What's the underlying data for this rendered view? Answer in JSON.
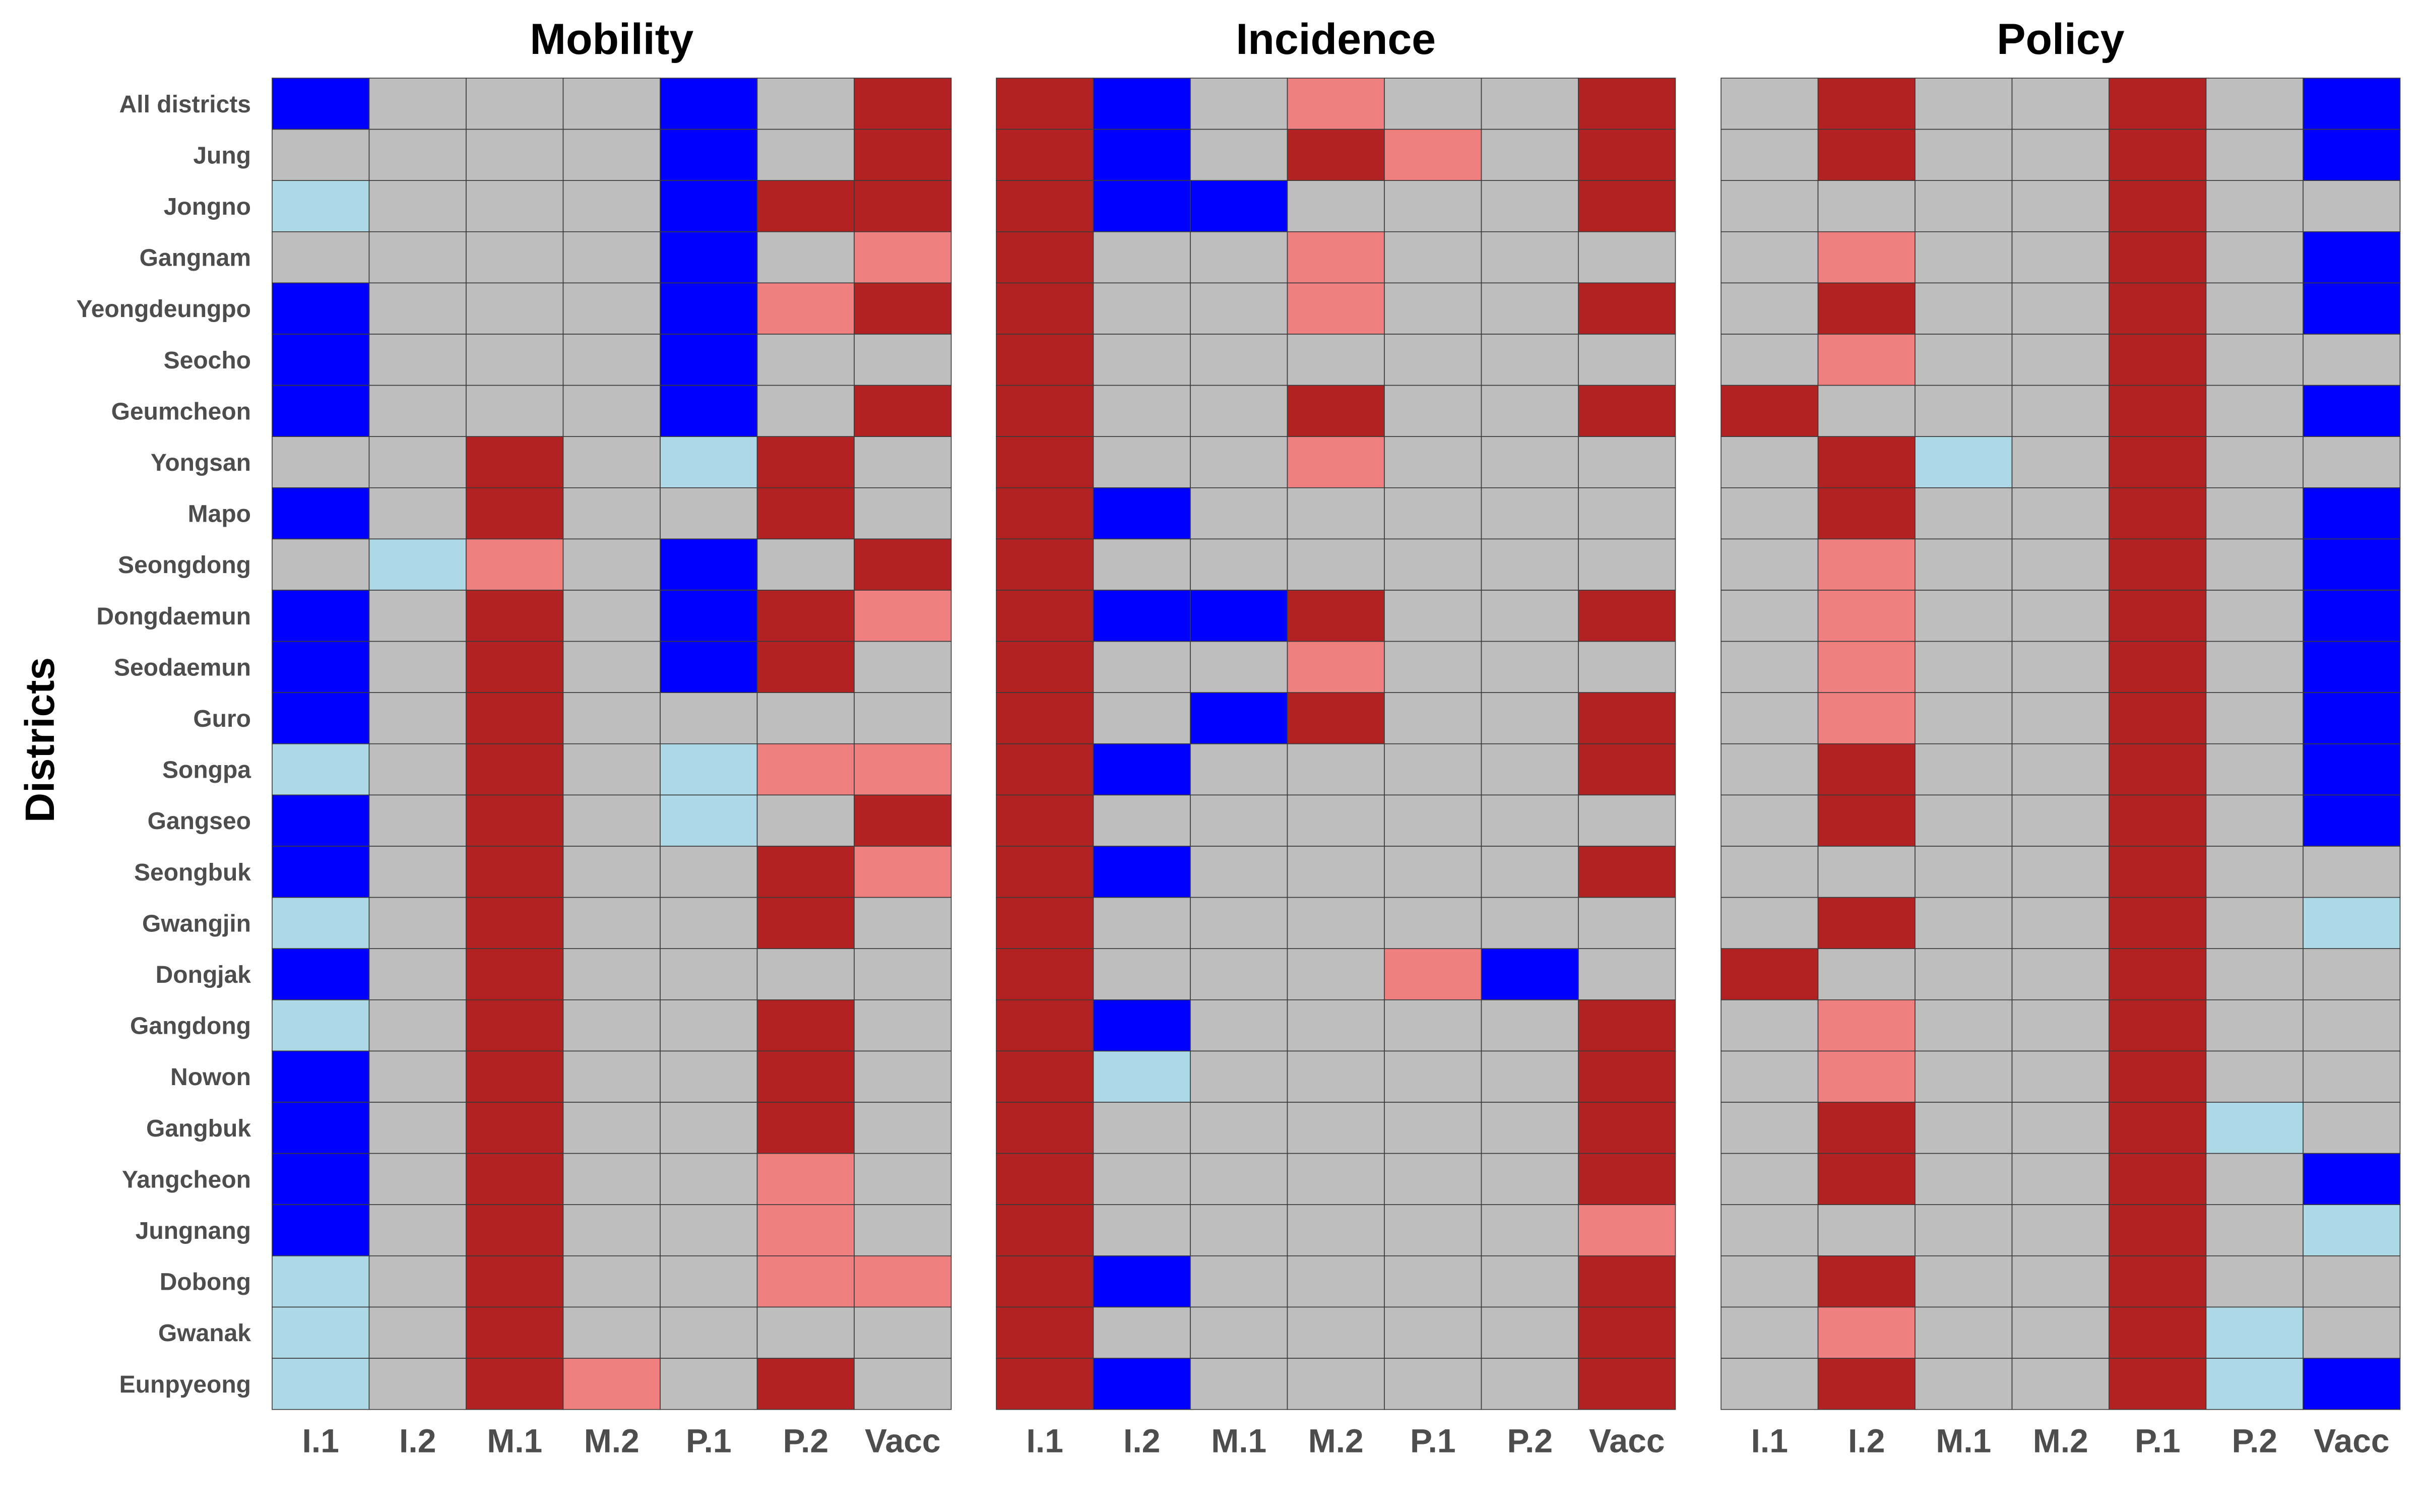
{
  "chart_data": {
    "type": "heatmap",
    "ylabel": "Districts",
    "columns": [
      "I.1",
      "I.2",
      "M.1",
      "M.2",
      "P.1",
      "P.2",
      "Vacc"
    ],
    "rows": [
      "All districts",
      "Jung",
      "Jongno",
      "Gangnam",
      "Yeongdeungpo",
      "Seocho",
      "Geumcheon",
      "Yongsan",
      "Mapo",
      "Seongdong",
      "Dongdaemun",
      "Seodaemun",
      "Guro",
      "Songpa",
      "Gangseo",
      "Seongbuk",
      "Gwangjin",
      "Dongjak",
      "Gangdong",
      "Nowon",
      "Gangbuk",
      "Yangcheon",
      "Jungnang",
      "Dobong",
      "Gwanak",
      "Eunpyeong"
    ],
    "category_colors": {
      "DR": "#b22222",
      "LR": "#f08080",
      "G": "#bebebe",
      "LB": "#add8e6",
      "B": "#0000ff"
    },
    "panels": [
      {
        "title": "Mobility",
        "cells": [
          [
            "B",
            "G",
            "G",
            "G",
            "B",
            "G",
            "DR"
          ],
          [
            "G",
            "G",
            "G",
            "G",
            "B",
            "G",
            "DR"
          ],
          [
            "LB",
            "G",
            "G",
            "G",
            "B",
            "DR",
            "DR"
          ],
          [
            "G",
            "G",
            "G",
            "G",
            "B",
            "G",
            "LR"
          ],
          [
            "B",
            "G",
            "G",
            "G",
            "B",
            "LR",
            "DR"
          ],
          [
            "B",
            "G",
            "G",
            "G",
            "B",
            "G",
            "G"
          ],
          [
            "B",
            "G",
            "G",
            "G",
            "B",
            "G",
            "DR"
          ],
          [
            "G",
            "G",
            "DR",
            "G",
            "LB",
            "DR",
            "G"
          ],
          [
            "B",
            "G",
            "DR",
            "G",
            "G",
            "DR",
            "G"
          ],
          [
            "G",
            "LB",
            "LR",
            "G",
            "B",
            "G",
            "DR"
          ],
          [
            "B",
            "G",
            "DR",
            "G",
            "B",
            "DR",
            "LR"
          ],
          [
            "B",
            "G",
            "DR",
            "G",
            "B",
            "DR",
            "G"
          ],
          [
            "B",
            "G",
            "DR",
            "G",
            "G",
            "G",
            "G"
          ],
          [
            "LB",
            "G",
            "DR",
            "G",
            "LB",
            "LR",
            "LR"
          ],
          [
            "B",
            "G",
            "DR",
            "G",
            "LB",
            "G",
            "DR"
          ],
          [
            "B",
            "G",
            "DR",
            "G",
            "G",
            "DR",
            "LR"
          ],
          [
            "LB",
            "G",
            "DR",
            "G",
            "G",
            "DR",
            "G"
          ],
          [
            "B",
            "G",
            "DR",
            "G",
            "G",
            "G",
            "G"
          ],
          [
            "LB",
            "G",
            "DR",
            "G",
            "G",
            "DR",
            "G"
          ],
          [
            "B",
            "G",
            "DR",
            "G",
            "G",
            "DR",
            "G"
          ],
          [
            "B",
            "G",
            "DR",
            "G",
            "G",
            "DR",
            "G"
          ],
          [
            "B",
            "G",
            "DR",
            "G",
            "G",
            "LR",
            "G"
          ],
          [
            "B",
            "G",
            "DR",
            "G",
            "G",
            "LR",
            "G"
          ],
          [
            "LB",
            "G",
            "DR",
            "G",
            "G",
            "LR",
            "LR"
          ],
          [
            "LB",
            "G",
            "DR",
            "G",
            "G",
            "G",
            "G"
          ],
          [
            "LB",
            "G",
            "DR",
            "LR",
            "G",
            "DR",
            "G"
          ]
        ]
      },
      {
        "title": "Incidence",
        "cells": [
          [
            "DR",
            "B",
            "G",
            "LR",
            "G",
            "G",
            "DR"
          ],
          [
            "DR",
            "B",
            "G",
            "DR",
            "LR",
            "G",
            "DR"
          ],
          [
            "DR",
            "B",
            "B",
            "G",
            "G",
            "G",
            "DR"
          ],
          [
            "DR",
            "G",
            "G",
            "LR",
            "G",
            "G",
            "G"
          ],
          [
            "DR",
            "G",
            "G",
            "LR",
            "G",
            "G",
            "DR"
          ],
          [
            "DR",
            "G",
            "G",
            "G",
            "G",
            "G",
            "G"
          ],
          [
            "DR",
            "G",
            "G",
            "DR",
            "G",
            "G",
            "DR"
          ],
          [
            "DR",
            "G",
            "G",
            "LR",
            "G",
            "G",
            "G"
          ],
          [
            "DR",
            "B",
            "G",
            "G",
            "G",
            "G",
            "G"
          ],
          [
            "DR",
            "G",
            "G",
            "G",
            "G",
            "G",
            "G"
          ],
          [
            "DR",
            "B",
            "B",
            "DR",
            "G",
            "G",
            "DR"
          ],
          [
            "DR",
            "G",
            "G",
            "LR",
            "G",
            "G",
            "G"
          ],
          [
            "DR",
            "G",
            "B",
            "DR",
            "G",
            "G",
            "DR"
          ],
          [
            "DR",
            "B",
            "G",
            "G",
            "G",
            "G",
            "DR"
          ],
          [
            "DR",
            "G",
            "G",
            "G",
            "G",
            "G",
            "G"
          ],
          [
            "DR",
            "B",
            "G",
            "G",
            "G",
            "G",
            "DR"
          ],
          [
            "DR",
            "G",
            "G",
            "G",
            "G",
            "G",
            "G"
          ],
          [
            "DR",
            "G",
            "G",
            "G",
            "LR",
            "B",
            "G"
          ],
          [
            "DR",
            "B",
            "G",
            "G",
            "G",
            "G",
            "DR"
          ],
          [
            "DR",
            "LB",
            "G",
            "G",
            "G",
            "G",
            "DR"
          ],
          [
            "DR",
            "G",
            "G",
            "G",
            "G",
            "G",
            "DR"
          ],
          [
            "DR",
            "G",
            "G",
            "G",
            "G",
            "G",
            "DR"
          ],
          [
            "DR",
            "G",
            "G",
            "G",
            "G",
            "G",
            "LR"
          ],
          [
            "DR",
            "B",
            "G",
            "G",
            "G",
            "G",
            "DR"
          ],
          [
            "DR",
            "G",
            "G",
            "G",
            "G",
            "G",
            "DR"
          ],
          [
            "DR",
            "B",
            "G",
            "G",
            "G",
            "G",
            "DR"
          ]
        ]
      },
      {
        "title": "Policy",
        "cells": [
          [
            "G",
            "DR",
            "G",
            "G",
            "DR",
            "G",
            "B"
          ],
          [
            "G",
            "DR",
            "G",
            "G",
            "DR",
            "G",
            "B"
          ],
          [
            "G",
            "G",
            "G",
            "G",
            "DR",
            "G",
            "G"
          ],
          [
            "G",
            "LR",
            "G",
            "G",
            "DR",
            "G",
            "B"
          ],
          [
            "G",
            "DR",
            "G",
            "G",
            "DR",
            "G",
            "B"
          ],
          [
            "G",
            "LR",
            "G",
            "G",
            "DR",
            "G",
            "G"
          ],
          [
            "DR",
            "G",
            "G",
            "G",
            "DR",
            "G",
            "B"
          ],
          [
            "G",
            "DR",
            "LB",
            "G",
            "DR",
            "G",
            "G"
          ],
          [
            "G",
            "DR",
            "G",
            "G",
            "DR",
            "G",
            "B"
          ],
          [
            "G",
            "LR",
            "G",
            "G",
            "DR",
            "G",
            "B"
          ],
          [
            "G",
            "LR",
            "G",
            "G",
            "DR",
            "G",
            "B"
          ],
          [
            "G",
            "LR",
            "G",
            "G",
            "DR",
            "G",
            "B"
          ],
          [
            "G",
            "LR",
            "G",
            "G",
            "DR",
            "G",
            "B"
          ],
          [
            "G",
            "DR",
            "G",
            "G",
            "DR",
            "G",
            "B"
          ],
          [
            "G",
            "DR",
            "G",
            "G",
            "DR",
            "G",
            "B"
          ],
          [
            "G",
            "G",
            "G",
            "G",
            "DR",
            "G",
            "G"
          ],
          [
            "G",
            "DR",
            "G",
            "G",
            "DR",
            "G",
            "LB"
          ],
          [
            "DR",
            "G",
            "G",
            "G",
            "DR",
            "G",
            "G"
          ],
          [
            "G",
            "LR",
            "G",
            "G",
            "DR",
            "G",
            "G"
          ],
          [
            "G",
            "LR",
            "G",
            "G",
            "DR",
            "G",
            "G"
          ],
          [
            "G",
            "DR",
            "G",
            "G",
            "DR",
            "LB",
            "G"
          ],
          [
            "G",
            "DR",
            "G",
            "G",
            "DR",
            "G",
            "B"
          ],
          [
            "G",
            "G",
            "G",
            "G",
            "DR",
            "G",
            "LB"
          ],
          [
            "G",
            "DR",
            "G",
            "G",
            "DR",
            "G",
            "G"
          ],
          [
            "G",
            "LR",
            "G",
            "G",
            "DR",
            "LB",
            "G"
          ],
          [
            "G",
            "DR",
            "G",
            "G",
            "DR",
            "LB",
            "B"
          ]
        ]
      }
    ]
  }
}
